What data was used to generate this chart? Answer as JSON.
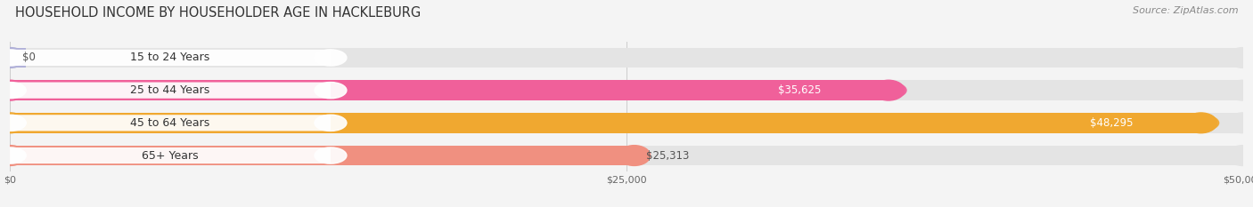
{
  "title": "HOUSEHOLD INCOME BY HOUSEHOLDER AGE IN HACKLEBURG",
  "source": "Source: ZipAtlas.com",
  "categories": [
    "15 to 24 Years",
    "25 to 44 Years",
    "45 to 64 Years",
    "65+ Years"
  ],
  "values": [
    0,
    35625,
    48295,
    25313
  ],
  "bar_colors": [
    "#b0b0d8",
    "#f0609a",
    "#f0a830",
    "#f09080"
  ],
  "value_labels": [
    "$0",
    "$35,625",
    "$48,295",
    "$25,313"
  ],
  "value_inside": [
    false,
    true,
    true,
    false
  ],
  "value_colors_inside": [
    "#555555",
    "#ffffff",
    "#ffffff",
    "#555555"
  ],
  "xlim": [
    0,
    50000
  ],
  "xticks": [
    0,
    25000,
    50000
  ],
  "xticklabels": [
    "$0",
    "$25,000",
    "$50,000"
  ],
  "background_color": "#f4f4f4",
  "bar_bg_color": "#e4e4e4",
  "title_fontsize": 10.5,
  "source_fontsize": 8,
  "label_fontsize": 9,
  "value_fontsize": 8.5,
  "bar_height": 0.62,
  "bar_gap": 0.38,
  "figsize": [
    14.06,
    2.33
  ],
  "dpi": 100
}
